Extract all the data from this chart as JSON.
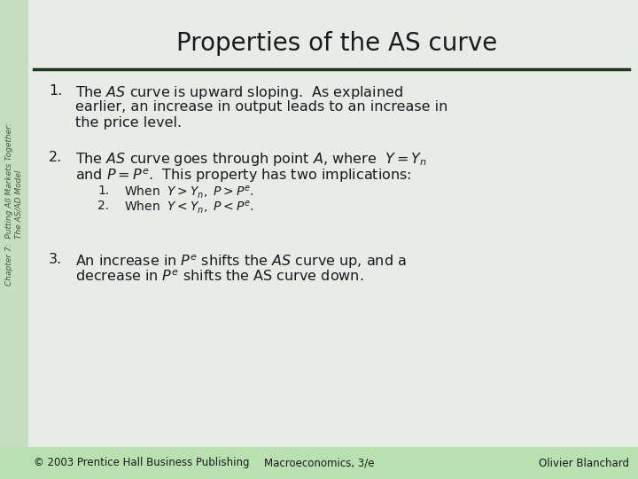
{
  "title": "Properties of the AS curve",
  "title_fontsize": 20,
  "title_color": "#1a1a1a",
  "main_bg": "#e8ece8",
  "sidebar_color": "#c8dcc0",
  "sidebar_text": "Chapter 7:  Putting All Markets Together:\nThe AS/AD Model",
  "sidebar_fontsize": 6.5,
  "divider_color": "#1a3a1a",
  "body_fontsize": 11.5,
  "sub_fontsize": 10,
  "footer_bg": "#b8e0b0",
  "footer_fontsize": 8.5,
  "footer_left": "© 2003 Prentice Hall Business Publishing",
  "footer_center": "Macroeconomics, 3/e",
  "footer_right": "Olivier Blanchard",
  "item1_line1": "The $\\mathit{AS}$ curve is upward sloping.  As explained",
  "item1_line2": "earlier, an increase in output leads to an increase in",
  "item1_line3": "the price level.",
  "item2_line1": "The $\\mathit{AS}$ curve goes through point $\\mathit{A}$, where  $Y = Y_n$",
  "item2_line2": "and $P = P^e$.  This property has two implications:",
  "item2a": "When  $Y > Y_n,\\ P > P^e$.",
  "item2b": "When  $Y < Y_n,\\ P < P^e$.",
  "item3_line1": "An increase in $P^e$ shifts the $\\mathit{AS}$ curve up, and a",
  "item3_line2": "decrease in $P^e$ shifts the AS curve down."
}
